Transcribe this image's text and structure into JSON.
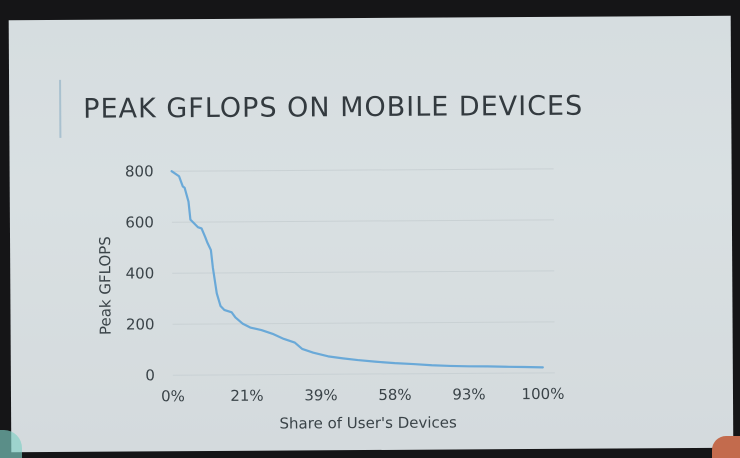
{
  "slide": {
    "title": "PEAK GFLOPS ON MOBILE DEVICES"
  },
  "chart_data": {
    "type": "line",
    "title": "PEAK GFLOPS ON MOBILE DEVICES",
    "xlabel": "Share of User's Devices",
    "ylabel": "Peak GFLOPS",
    "x_tick_labels": [
      "0%",
      "21%",
      "39%",
      "58%",
      "93%",
      "100%"
    ],
    "y_ticks": [
      0,
      200,
      400,
      600,
      800
    ],
    "ylim": [
      0,
      800
    ],
    "xlim": [
      0,
      1
    ],
    "grid": "horizontal",
    "legend": "none",
    "line_color": "#6aa9d8",
    "series": [
      {
        "x": [
          0,
          0.02,
          0.03,
          0.035,
          0.045,
          0.05,
          0.07,
          0.08,
          0.09,
          0.095,
          0.105,
          0.11,
          0.12,
          0.13,
          0.14,
          0.16,
          0.17,
          0.19,
          0.21,
          0.24,
          0.27,
          0.3,
          0.33,
          0.35,
          0.38,
          0.42,
          0.46,
          0.5,
          0.55,
          0.6,
          0.65,
          0.7,
          0.75,
          0.8,
          0.85,
          0.9,
          0.95,
          1.0
        ],
        "y": [
          800,
          780,
          740,
          735,
          680,
          610,
          580,
          575,
          540,
          520,
          490,
          420,
          320,
          270,
          255,
          245,
          225,
          200,
          185,
          175,
          160,
          140,
          125,
          100,
          85,
          70,
          62,
          55,
          48,
          42,
          38,
          33,
          30,
          28,
          27,
          25,
          24,
          22
        ]
      }
    ]
  }
}
